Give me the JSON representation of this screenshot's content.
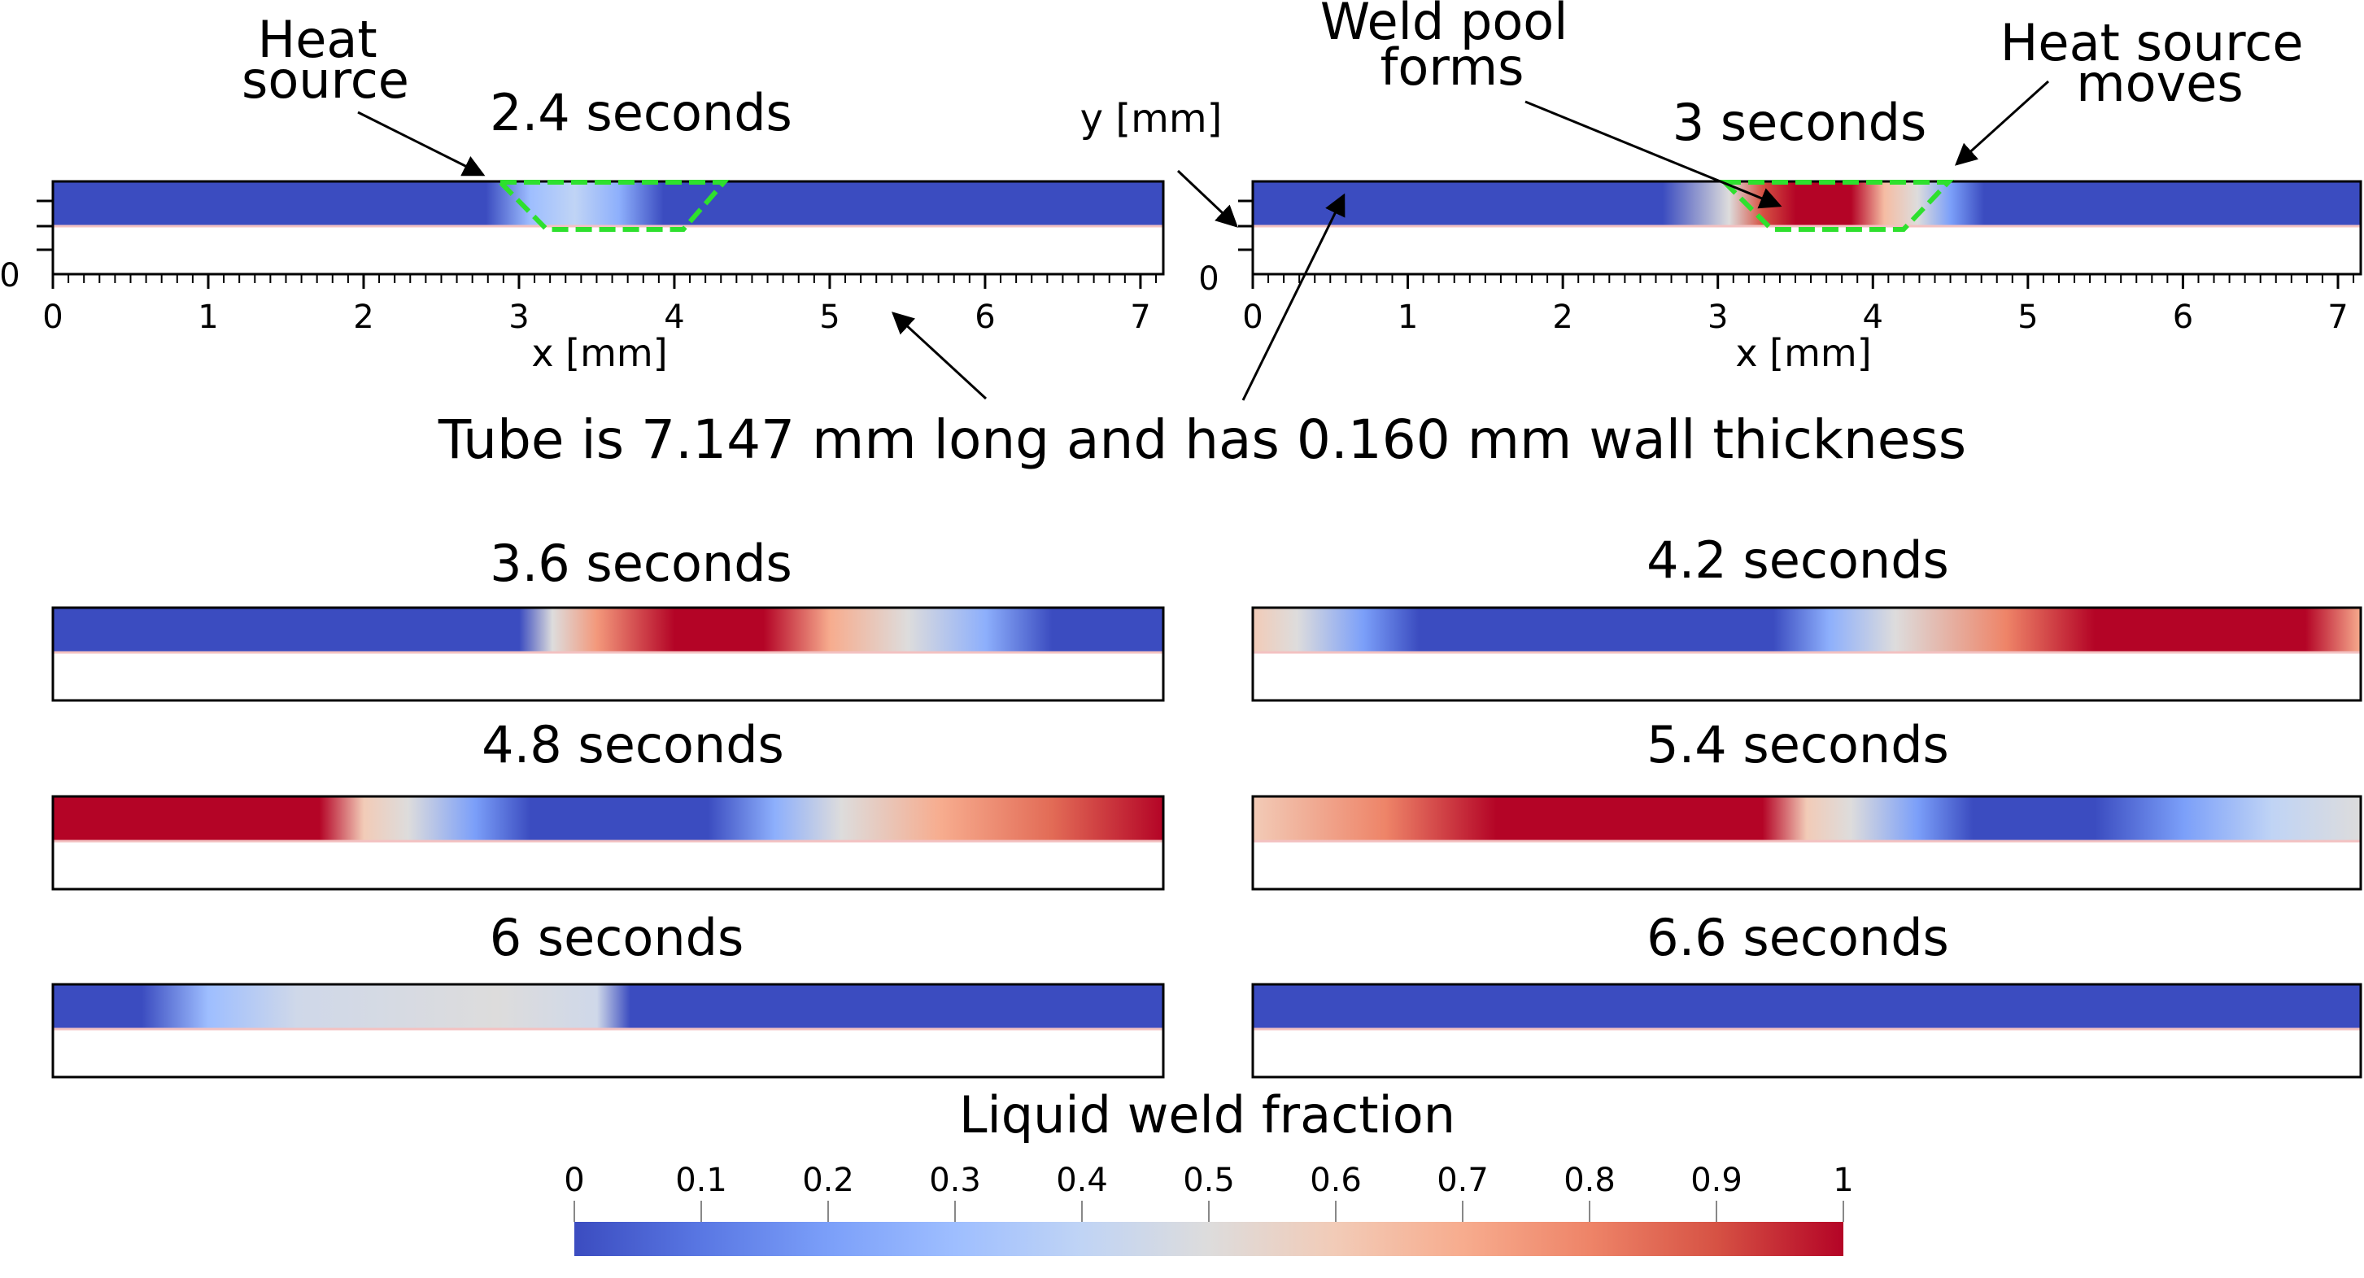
{
  "annotations": {
    "heat_source": [
      "Heat",
      "source"
    ],
    "weld_pool_forms": [
      "Weld pool",
      "forms"
    ],
    "heat_source_moves": [
      "Heat source",
      "moves"
    ],
    "y_axis": "y [mm]",
    "x_axis": "x [mm]",
    "tube_caption": "Tube is 7.147 mm long and has 0.160 mm wall thickness"
  },
  "tube": {
    "length_mm": 7.147,
    "wall_thickness_mm": 0.16
  },
  "axis_ticks": [
    "0",
    "1",
    "2",
    "3",
    "4",
    "5",
    "6",
    "7"
  ],
  "axis_zero": "0",
  "frames": [
    {
      "label": "2.4 seconds",
      "stops": [
        [
          0,
          0
        ],
        [
          0.39,
          0
        ],
        [
          0.43,
          0.3
        ],
        [
          0.47,
          0.4
        ],
        [
          0.51,
          0.25
        ],
        [
          0.55,
          0
        ],
        [
          1,
          0
        ]
      ]
    },
    {
      "label": "3 seconds",
      "stops": [
        [
          0,
          0
        ],
        [
          0.37,
          0
        ],
        [
          0.43,
          0.5
        ],
        [
          0.46,
          0.9
        ],
        [
          0.49,
          1
        ],
        [
          0.54,
          1
        ],
        [
          0.57,
          0.65
        ],
        [
          0.6,
          0.5
        ],
        [
          0.63,
          0.2
        ],
        [
          0.66,
          0
        ],
        [
          1,
          0
        ]
      ]
    },
    {
      "label": "3.6 seconds",
      "stops": [
        [
          0,
          0
        ],
        [
          0.42,
          0
        ],
        [
          0.45,
          0.5
        ],
        [
          0.49,
          0.75
        ],
        [
          0.56,
          1
        ],
        [
          0.64,
          1
        ],
        [
          0.7,
          0.7
        ],
        [
          0.77,
          0.5
        ],
        [
          0.84,
          0.25
        ],
        [
          0.9,
          0
        ],
        [
          1,
          0
        ]
      ]
    },
    {
      "label": "4.2 seconds",
      "stops": [
        [
          0,
          0.6
        ],
        [
          0.04,
          0.5
        ],
        [
          0.1,
          0.2
        ],
        [
          0.15,
          0
        ],
        [
          0.47,
          0
        ],
        [
          0.52,
          0.25
        ],
        [
          0.58,
          0.5
        ],
        [
          0.68,
          0.8
        ],
        [
          0.76,
          1
        ],
        [
          0.95,
          1
        ],
        [
          1,
          0.7
        ]
      ]
    },
    {
      "label": "4.8 seconds",
      "stops": [
        [
          0,
          1
        ],
        [
          0.24,
          1
        ],
        [
          0.28,
          0.6
        ],
        [
          0.32,
          0.5
        ],
        [
          0.38,
          0.2
        ],
        [
          0.43,
          0
        ],
        [
          0.59,
          0
        ],
        [
          0.65,
          0.25
        ],
        [
          0.71,
          0.5
        ],
        [
          0.8,
          0.7
        ],
        [
          0.9,
          0.85
        ],
        [
          1,
          1
        ]
      ]
    },
    {
      "label": "5.4 seconds",
      "stops": [
        [
          0,
          0.6
        ],
        [
          0.12,
          0.8
        ],
        [
          0.22,
          1
        ],
        [
          0.46,
          1
        ],
        [
          0.5,
          0.6
        ],
        [
          0.54,
          0.5
        ],
        [
          0.6,
          0.2
        ],
        [
          0.65,
          0
        ],
        [
          0.76,
          0
        ],
        [
          0.84,
          0.2
        ],
        [
          0.92,
          0.4
        ],
        [
          1,
          0.5
        ]
      ]
    },
    {
      "label": "6 seconds",
      "stops": [
        [
          0,
          0
        ],
        [
          0.08,
          0
        ],
        [
          0.14,
          0.3
        ],
        [
          0.22,
          0.45
        ],
        [
          0.4,
          0.5
        ],
        [
          0.49,
          0.45
        ],
        [
          0.52,
          0
        ],
        [
          1,
          0
        ]
      ]
    },
    {
      "label": "6.6 seconds",
      "stops": [
        [
          0,
          0
        ],
        [
          1,
          0
        ]
      ]
    }
  ],
  "colorbar": {
    "title": "Liquid weld fraction",
    "ticks": [
      "0",
      "0.1",
      "0.2",
      "0.3",
      "0.4",
      "0.5",
      "0.6",
      "0.7",
      "0.8",
      "0.9",
      "1"
    ],
    "colors": [
      "#3b4cc0",
      "#5977e3",
      "#7b9ff9",
      "#9ebeff",
      "#c0d4f5",
      "#dddcdc",
      "#f2cbb7",
      "#f7ac8e",
      "#ee8468",
      "#d65244",
      "#b40426"
    ]
  },
  "colors": {
    "cold": "#2e3c96",
    "hot": "#8e0220",
    "pool_outline": "#2ee02e",
    "surface_line": "#f3c2c2"
  }
}
